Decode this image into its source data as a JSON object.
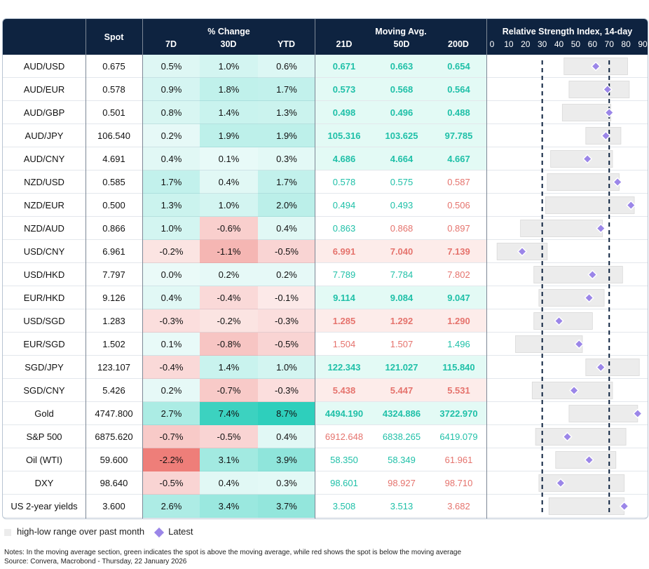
{
  "header": {
    "spot": "Spot",
    "pct_change": "% Change",
    "moving_avg": "Moving Avg.",
    "rsi_title": "Relative Strength Index, 14-day",
    "cols": [
      "7D",
      "30D",
      "YTD",
      "21D",
      "50D",
      "200D"
    ],
    "rsi_ticks": [
      "0",
      "10",
      "20",
      "30",
      "40",
      "50",
      "60",
      "70",
      "80",
      "90"
    ]
  },
  "colors": {
    "header_bg": "#0e2340",
    "pos_text": "#1fc0a8",
    "neg_text": "#e5736d",
    "diamond": "#9b86e8",
    "range_bar": "#ececec"
  },
  "chart_data": {
    "type": "table",
    "title": "Relative Strength Index, 14-day",
    "rsi_axis": [
      0,
      90
    ],
    "rsi_reference_lines": [
      30,
      70
    ],
    "rows": [
      {
        "name": "AUD/USD",
        "spot": "0.675",
        "ch7": "0.5%",
        "ch30": "1.0%",
        "ytd": "0.6%",
        "ma21": "0.671",
        "ma50": "0.663",
        "ma200": "0.654",
        "rsi": 62,
        "low": 43,
        "high": 81
      },
      {
        "name": "AUD/EUR",
        "spot": "0.578",
        "ch7": "0.9%",
        "ch30": "1.8%",
        "ytd": "1.7%",
        "ma21": "0.573",
        "ma50": "0.568",
        "ma200": "0.564",
        "rsi": 69,
        "low": 46,
        "high": 82
      },
      {
        "name": "AUD/GBP",
        "spot": "0.501",
        "ch7": "0.8%",
        "ch30": "1.4%",
        "ytd": "1.3%",
        "ma21": "0.498",
        "ma50": "0.496",
        "ma200": "0.488",
        "rsi": 70,
        "low": 42,
        "high": 71
      },
      {
        "name": "AUD/JPY",
        "spot": "106.540",
        "ch7": "0.2%",
        "ch30": "1.9%",
        "ytd": "1.9%",
        "ma21": "105.316",
        "ma50": "103.625",
        "ma200": "97.785",
        "rsi": 68,
        "low": 56,
        "high": 77
      },
      {
        "name": "AUD/CNY",
        "spot": "4.691",
        "ch7": "0.4%",
        "ch30": "0.1%",
        "ytd": "0.3%",
        "ma21": "4.686",
        "ma50": "4.664",
        "ma200": "4.667",
        "rsi": 57,
        "low": 35,
        "high": 72
      },
      {
        "name": "NZD/USD",
        "spot": "0.585",
        "ch7": "1.7%",
        "ch30": "0.4%",
        "ytd": "1.7%",
        "ma21": "0.578",
        "ma50": "0.575",
        "ma200": "0.587",
        "rsi": 75,
        "low": 33,
        "high": 76
      },
      {
        "name": "NZD/EUR",
        "spot": "0.500",
        "ch7": "1.3%",
        "ch30": "1.0%",
        "ytd": "2.0%",
        "ma21": "0.494",
        "ma50": "0.493",
        "ma200": "0.506",
        "rsi": 83,
        "low": 32,
        "high": 85
      },
      {
        "name": "NZD/AUD",
        "spot": "0.866",
        "ch7": "1.0%",
        "ch30": "-0.6%",
        "ytd": "0.4%",
        "ma21": "0.863",
        "ma50": "0.868",
        "ma200": "0.897",
        "rsi": 65,
        "low": 17,
        "high": 66
      },
      {
        "name": "USD/CNY",
        "spot": "6.961",
        "ch7": "-0.2%",
        "ch30": "-1.1%",
        "ytd": "-0.5%",
        "ma21": "6.991",
        "ma50": "7.040",
        "ma200": "7.139",
        "rsi": 18,
        "low": 3,
        "high": 33
      },
      {
        "name": "USD/HKD",
        "spot": "7.797",
        "ch7": "0.0%",
        "ch30": "0.2%",
        "ytd": "0.2%",
        "ma21": "7.789",
        "ma50": "7.784",
        "ma200": "7.802",
        "rsi": 60,
        "low": 25,
        "high": 78
      },
      {
        "name": "EUR/HKD",
        "spot": "9.126",
        "ch7": "0.4%",
        "ch30": "-0.4%",
        "ytd": "-0.1%",
        "ma21": "9.114",
        "ma50": "9.084",
        "ma200": "9.047",
        "rsi": 58,
        "low": 28,
        "high": 67
      },
      {
        "name": "USD/SGD",
        "spot": "1.283",
        "ch7": "-0.3%",
        "ch30": "-0.2%",
        "ytd": "-0.3%",
        "ma21": "1.285",
        "ma50": "1.292",
        "ma200": "1.290",
        "rsi": 40,
        "low": 25,
        "high": 60
      },
      {
        "name": "EUR/SGD",
        "spot": "1.502",
        "ch7": "0.1%",
        "ch30": "-0.8%",
        "ytd": "-0.5%",
        "ma21": "1.504",
        "ma50": "1.507",
        "ma200": "1.496",
        "rsi": 52,
        "low": 14,
        "high": 54
      },
      {
        "name": "SGD/JPY",
        "spot": "123.107",
        "ch7": "-0.4%",
        "ch30": "1.4%",
        "ytd": "1.0%",
        "ma21": "122.343",
        "ma50": "121.027",
        "ma200": "115.840",
        "rsi": 65,
        "low": 56,
        "high": 88
      },
      {
        "name": "SGD/CNY",
        "spot": "5.426",
        "ch7": "0.2%",
        "ch30": "-0.7%",
        "ytd": "-0.3%",
        "ma21": "5.438",
        "ma50": "5.447",
        "ma200": "5.531",
        "rsi": 49,
        "low": 24,
        "high": 72
      },
      {
        "name": "Gold",
        "spot": "4747.800",
        "ch7": "2.7%",
        "ch30": "7.4%",
        "ytd": "8.7%",
        "ma21": "4494.190",
        "ma50": "4324.886",
        "ma200": "3722.970",
        "rsi": 87,
        "low": 46,
        "high": 87
      },
      {
        "name": "S&P 500",
        "spot": "6875.620",
        "ch7": "-0.7%",
        "ch30": "-0.5%",
        "ytd": "0.4%",
        "ma21": "6912.648",
        "ma50": "6838.265",
        "ma200": "6419.079",
        "rsi": 45,
        "low": 26,
        "high": 80
      },
      {
        "name": "Oil (WTI)",
        "spot": "59.600",
        "ch7": "-2.2%",
        "ch30": "3.1%",
        "ytd": "3.9%",
        "ma21": "58.350",
        "ma50": "58.349",
        "ma200": "61.961",
        "rsi": 58,
        "low": 38,
        "high": 74
      },
      {
        "name": "DXY",
        "spot": "98.640",
        "ch7": "-0.5%",
        "ch30": "0.4%",
        "ytd": "0.3%",
        "ma21": "98.601",
        "ma50": "98.927",
        "ma200": "98.710",
        "rsi": 41,
        "low": 28,
        "high": 79
      },
      {
        "name": "US 2-year yields",
        "spot": "3.600",
        "ch7": "2.6%",
        "ch30": "3.4%",
        "ytd": "3.7%",
        "ma21": "3.508",
        "ma50": "3.513",
        "ma200": "3.682",
        "rsi": 79,
        "low": 34,
        "high": 79
      }
    ]
  },
  "legend": {
    "range_label": "high-low range over past month",
    "latest_label": "Latest"
  },
  "notes": {
    "line1": "Notes: In the moving average section, green indicates the spot is above the moving average, while red shows the spot is below the moving average",
    "line2": "Source: Convera, Macrobond - Thursday, 22 January 2026"
  }
}
